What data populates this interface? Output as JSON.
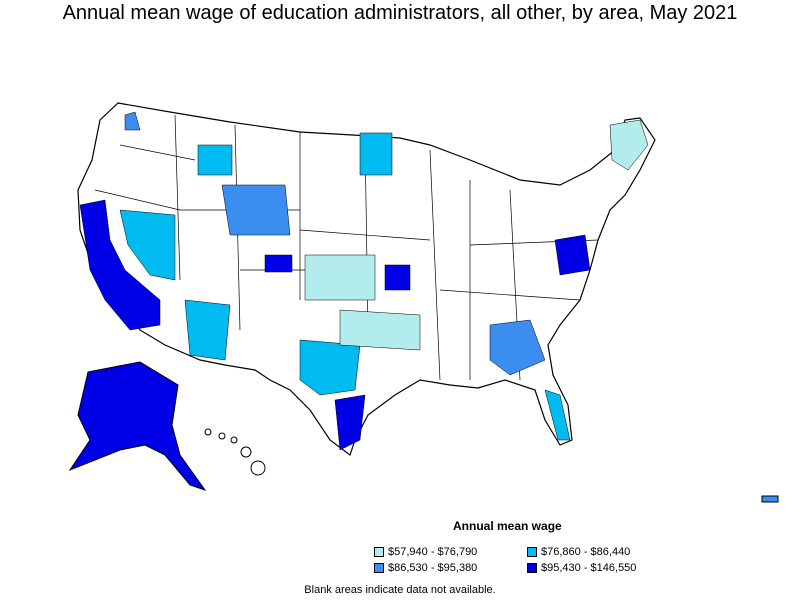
{
  "title": "Annual mean wage of education administrators, all other, by area, May 2021",
  "legend": {
    "title": "Annual mean wage",
    "items": [
      {
        "label": "$57,940 - $76,790",
        "color": "#b3ecec"
      },
      {
        "label": "$76,860 - $86,440",
        "color": "#00bbf0"
      },
      {
        "label": "$86,530 - $95,380",
        "color": "#3b8ef0"
      },
      {
        "label": "$95,430 - $146,550",
        "color": "#0000e6"
      }
    ]
  },
  "note": "Blank areas indicate data not available."
}
